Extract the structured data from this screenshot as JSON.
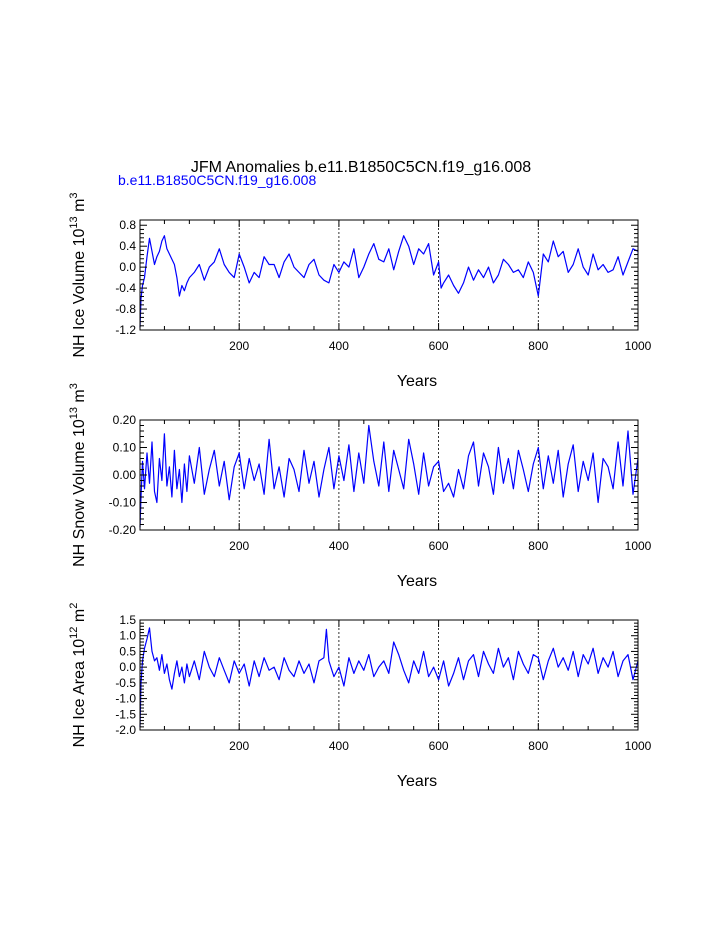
{
  "title": "JFM Anomalies b.e11.B1850C5CN.f19_g16.008",
  "subtitle": "b.e11.B1850C5CN.f19_g16.008",
  "colors": {
    "series": "#0000ff",
    "subtitle": "#0000ff",
    "axes": "#000000"
  },
  "chart_data": [
    {
      "type": "line",
      "ylabel_main": "NH Ice Volume 10",
      "ylabel_sup": "13",
      "ylabel_unit": " m",
      "ylabel_unit_sup": "3",
      "xlabel": "Years",
      "xlim": [
        1,
        1000
      ],
      "ylim": [
        -1.2,
        0.9
      ],
      "xticks": [
        200,
        400,
        600,
        800,
        1000
      ],
      "yticks": [
        -1.2,
        -0.8,
        -0.4,
        0.0,
        0.4,
        0.8
      ],
      "ytick_labels": [
        "-1.2",
        "-0.8",
        "-0.4",
        "0.0",
        "0.4",
        "0.8"
      ],
      "grid_x": [
        200,
        400,
        600,
        800
      ],
      "series": [
        {
          "name": "b.e11.B1850C5CN.f19_g16.008",
          "x": [
            1,
            3,
            6,
            10,
            15,
            20,
            25,
            30,
            35,
            40,
            45,
            50,
            55,
            60,
            65,
            70,
            75,
            80,
            85,
            90,
            95,
            100,
            110,
            120,
            130,
            140,
            150,
            160,
            170,
            180,
            190,
            200,
            210,
            220,
            230,
            240,
            250,
            260,
            270,
            280,
            290,
            300,
            310,
            320,
            330,
            340,
            350,
            360,
            370,
            380,
            390,
            400,
            410,
            420,
            430,
            440,
            450,
            460,
            470,
            480,
            490,
            500,
            510,
            520,
            530,
            540,
            550,
            560,
            570,
            580,
            590,
            600,
            605,
            610,
            620,
            630,
            640,
            650,
            660,
            670,
            680,
            690,
            700,
            710,
            720,
            730,
            740,
            750,
            760,
            770,
            780,
            790,
            800,
            810,
            820,
            830,
            840,
            850,
            860,
            870,
            880,
            890,
            900,
            910,
            920,
            930,
            940,
            950,
            960,
            970,
            980,
            990,
            1000
          ],
          "values": [
            -1.15,
            -0.6,
            -0.35,
            -0.2,
            0.2,
            0.55,
            0.3,
            0.05,
            0.2,
            0.3,
            0.5,
            0.6,
            0.35,
            0.25,
            0.15,
            0.05,
            -0.2,
            -0.55,
            -0.35,
            -0.45,
            -0.3,
            -0.2,
            -0.1,
            0.05,
            -0.25,
            0.0,
            0.1,
            0.35,
            0.05,
            -0.1,
            -0.2,
            0.25,
            0.0,
            -0.3,
            -0.1,
            -0.2,
            0.2,
            0.05,
            0.05,
            -0.2,
            0.1,
            0.25,
            0.0,
            -0.1,
            -0.2,
            0.05,
            0.15,
            -0.15,
            -0.25,
            -0.3,
            0.05,
            -0.1,
            0.1,
            0.0,
            0.35,
            -0.2,
            0.0,
            0.25,
            0.45,
            0.15,
            0.1,
            0.35,
            -0.05,
            0.3,
            0.6,
            0.4,
            0.05,
            0.35,
            0.25,
            0.45,
            -0.15,
            0.1,
            -0.4,
            -0.3,
            -0.15,
            -0.35,
            -0.5,
            -0.3,
            0.0,
            -0.25,
            -0.05,
            -0.2,
            0.0,
            -0.3,
            -0.15,
            0.15,
            0.05,
            -0.1,
            -0.05,
            -0.2,
            0.1,
            -0.1,
            -0.55,
            0.25,
            0.1,
            0.5,
            0.2,
            0.3,
            -0.1,
            0.05,
            0.35,
            0.0,
            -0.15,
            0.25,
            -0.05,
            0.05,
            -0.1,
            -0.05,
            0.2,
            -0.15,
            0.1,
            0.35,
            0.3
          ]
        }
      ]
    },
    {
      "type": "line",
      "ylabel_main": "NH Snow Volume 10",
      "ylabel_sup": "13",
      "ylabel_unit": " m",
      "ylabel_unit_sup": "3",
      "xlabel": "Years",
      "xlim": [
        1,
        1000
      ],
      "ylim": [
        -0.2,
        0.2
      ],
      "xticks": [
        200,
        400,
        600,
        800,
        1000
      ],
      "yticks": [
        -0.2,
        -0.1,
        0.0,
        0.1,
        0.2
      ],
      "ytick_labels": [
        "-0.20",
        "-0.10",
        "0.00",
        "0.10",
        "0.20"
      ],
      "grid_x": [
        200,
        400,
        600,
        800
      ],
      "series": [
        {
          "name": "b.e11.B1850C5CN.f19_g16.008",
          "x": [
            1,
            3,
            6,
            10,
            15,
            20,
            25,
            30,
            35,
            40,
            45,
            50,
            55,
            60,
            65,
            70,
            75,
            80,
            85,
            90,
            95,
            100,
            110,
            120,
            130,
            140,
            150,
            160,
            170,
            180,
            190,
            200,
            210,
            220,
            230,
            240,
            250,
            260,
            270,
            280,
            290,
            300,
            310,
            320,
            330,
            340,
            350,
            360,
            370,
            380,
            390,
            400,
            410,
            420,
            430,
            440,
            450,
            460,
            470,
            480,
            490,
            500,
            510,
            520,
            530,
            540,
            550,
            560,
            570,
            580,
            590,
            600,
            610,
            620,
            630,
            640,
            650,
            660,
            670,
            680,
            690,
            700,
            710,
            720,
            730,
            740,
            750,
            760,
            770,
            780,
            790,
            800,
            810,
            820,
            830,
            840,
            850,
            860,
            870,
            880,
            890,
            900,
            910,
            920,
            930,
            940,
            950,
            960,
            970,
            980,
            990,
            1000
          ],
          "values": [
            -0.19,
            -0.08,
            0.05,
            -0.05,
            0.08,
            -0.03,
            0.12,
            -0.06,
            -0.1,
            0.06,
            -0.02,
            0.15,
            -0.04,
            0.03,
            -0.08,
            0.09,
            -0.05,
            0.02,
            -0.1,
            0.04,
            -0.06,
            0.07,
            -0.03,
            0.1,
            -0.07,
            0.02,
            0.09,
            -0.04,
            0.05,
            -0.09,
            0.03,
            0.08,
            -0.05,
            0.06,
            -0.02,
            0.04,
            -0.07,
            0.13,
            -0.05,
            0.03,
            -0.08,
            0.06,
            0.02,
            -0.06,
            0.09,
            -0.03,
            0.05,
            -0.08,
            0.02,
            0.1,
            -0.05,
            0.07,
            -0.02,
            0.11,
            -0.06,
            0.08,
            -0.03,
            0.18,
            0.05,
            -0.04,
            0.12,
            -0.06,
            0.09,
            0.02,
            -0.05,
            0.13,
            0.04,
            -0.07,
            0.08,
            -0.04,
            0.03,
            0.05,
            -0.06,
            -0.03,
            -0.08,
            0.02,
            -0.05,
            0.07,
            0.12,
            -0.04,
            0.08,
            0.03,
            -0.07,
            0.1,
            -0.03,
            0.06,
            -0.05,
            0.09,
            0.02,
            -0.06,
            0.04,
            0.1,
            -0.05,
            0.07,
            -0.03,
            0.09,
            -0.08,
            0.04,
            0.11,
            -0.06,
            0.05,
            -0.02,
            0.08,
            -0.1,
            0.06,
            0.03,
            -0.05,
            0.12,
            -0.04,
            0.16,
            -0.07,
            0.06
          ]
        }
      ]
    },
    {
      "type": "line",
      "ylabel_main": "NH Ice Area 10",
      "ylabel_sup": "12",
      "ylabel_unit": " m",
      "ylabel_unit_sup": "2",
      "xlabel": "Years",
      "xlim": [
        1,
        1000
      ],
      "ylim": [
        -2.0,
        1.5
      ],
      "xticks": [
        200,
        400,
        600,
        800,
        1000
      ],
      "yticks": [
        -2.0,
        -1.5,
        -1.0,
        -0.5,
        0.0,
        0.5,
        1.0,
        1.5
      ],
      "ytick_labels": [
        "-2.0",
        "-1.5",
        "-1.0",
        "-0.5",
        "0.0",
        "0.5",
        "1.0",
        "1.5"
      ],
      "grid_x": [
        200,
        400,
        600,
        800
      ],
      "series": [
        {
          "name": "b.e11.B1850C5CN.f19_g16.008",
          "x": [
            1,
            3,
            6,
            10,
            15,
            20,
            25,
            30,
            35,
            40,
            45,
            50,
            55,
            60,
            65,
            70,
            75,
            80,
            85,
            90,
            95,
            100,
            110,
            120,
            130,
            140,
            150,
            160,
            170,
            180,
            190,
            200,
            210,
            220,
            230,
            240,
            250,
            260,
            270,
            280,
            290,
            300,
            310,
            320,
            330,
            340,
            350,
            360,
            370,
            375,
            380,
            390,
            400,
            410,
            420,
            430,
            440,
            450,
            460,
            470,
            480,
            490,
            500,
            510,
            520,
            530,
            540,
            550,
            560,
            570,
            580,
            590,
            600,
            610,
            620,
            630,
            640,
            650,
            660,
            670,
            680,
            690,
            700,
            710,
            720,
            730,
            740,
            750,
            760,
            770,
            780,
            790,
            800,
            810,
            820,
            830,
            840,
            850,
            860,
            870,
            880,
            890,
            900,
            910,
            920,
            930,
            940,
            950,
            960,
            970,
            980,
            990,
            1000
          ],
          "values": [
            -1.9,
            -0.5,
            0.2,
            0.6,
            0.9,
            1.25,
            0.5,
            0.2,
            0.3,
            -0.1,
            0.4,
            -0.2,
            0.1,
            -0.4,
            -0.7,
            -0.2,
            0.2,
            -0.3,
            0.0,
            -0.5,
            0.1,
            -0.3,
            0.2,
            -0.4,
            0.5,
            0.0,
            -0.3,
            0.3,
            -0.1,
            -0.5,
            0.2,
            -0.2,
            0.1,
            -0.6,
            0.2,
            -0.3,
            0.3,
            -0.1,
            0.0,
            -0.4,
            0.3,
            -0.1,
            -0.3,
            0.2,
            -0.2,
            0.1,
            -0.5,
            0.2,
            0.3,
            1.2,
            0.2,
            -0.3,
            0.0,
            -0.6,
            0.3,
            -0.2,
            0.2,
            -0.1,
            0.4,
            -0.3,
            0.0,
            0.2,
            -0.2,
            0.8,
            0.4,
            -0.1,
            -0.5,
            0.2,
            -0.2,
            0.5,
            -0.3,
            0.0,
            -0.4,
            0.2,
            -0.6,
            -0.2,
            0.3,
            -0.4,
            0.2,
            0.4,
            -0.3,
            0.5,
            0.1,
            -0.2,
            0.6,
            0.0,
            0.3,
            -0.4,
            0.5,
            0.1,
            -0.2,
            0.4,
            0.3,
            -0.4,
            0.2,
            0.6,
            0.0,
            0.3,
            -0.1,
            0.5,
            -0.3,
            0.4,
            0.1,
            0.6,
            -0.2,
            0.3,
            0.0,
            0.5,
            -0.3,
            0.2,
            0.4,
            -0.4,
            0.2
          ]
        }
      ]
    }
  ]
}
